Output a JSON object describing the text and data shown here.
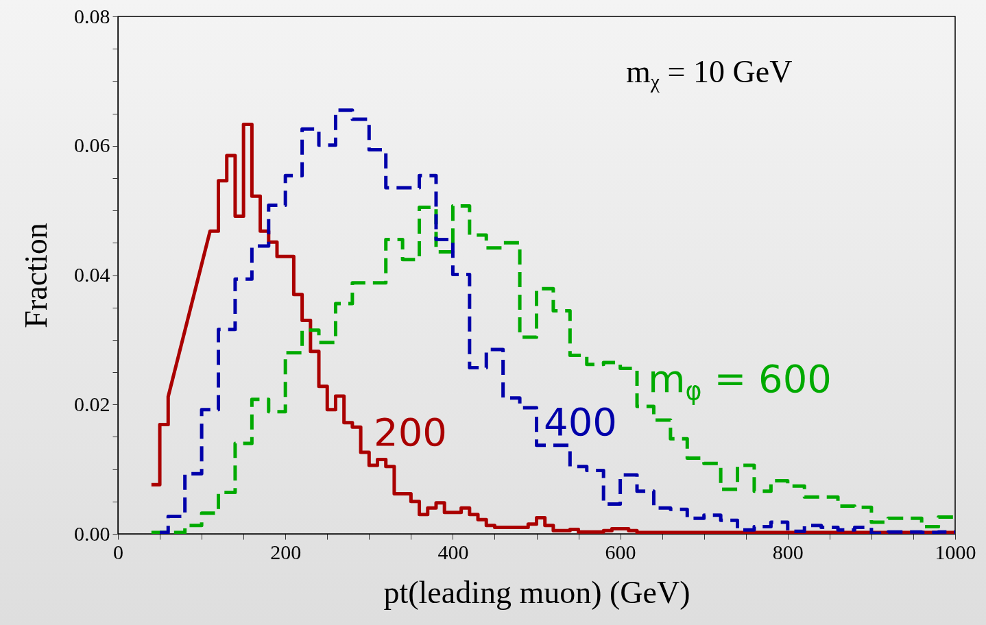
{
  "chart_data": {
    "type": "step",
    "xlabel": "pt(leading muon)  (GeV)",
    "ylabel": "Fraction",
    "annotations": [
      "m$_{χ}$ = 10 GeV"
    ],
    "xlim": [
      0,
      1000
    ],
    "ylim": [
      0,
      0.08
    ],
    "xticks": [
      0,
      {
        "value": 50,
        "label": null
      },
      200,
      {
        "value": 100,
        "label": null
      },
      {
        "value": 150,
        "label": null
      },
      {
        "value": 250,
        "label": null
      },
      {
        "value": 300,
        "label": null
      },
      {
        "value": 350,
        "label": null
      },
      400,
      {
        "value": 450,
        "label": null
      },
      {
        "value": 500,
        "label": null
      },
      {
        "value": 550,
        "label": null
      },
      600,
      {
        "value": 650,
        "label": null
      },
      {
        "value": 700,
        "label": null
      },
      {
        "value": 750,
        "label": null
      },
      800,
      {
        "value": 850,
        "label": null
      },
      {
        "value": 900,
        "label": null
      },
      {
        "value": 950,
        "label": null
      },
      1000
    ],
    "yticks": [
      {
        "value": 0,
        "label": "0.00"
      },
      {
        "value": 0.005,
        "label": null
      },
      {
        "value": 0.01,
        "label": null
      },
      {
        "value": 0.015,
        "label": null
      },
      {
        "value": 0.02,
        "label": "0.02"
      },
      {
        "value": 0.025,
        "label": null
      },
      {
        "value": 0.03,
        "label": null
      },
      {
        "value": 0.035,
        "label": null
      },
      {
        "value": 0.04,
        "label": "0.04"
      },
      {
        "value": 0.045,
        "label": null
      },
      {
        "value": 0.05,
        "label": null
      },
      {
        "value": 0.055,
        "label": null
      },
      {
        "value": 0.06,
        "label": "0.06"
      },
      {
        "value": 0.065,
        "label": null
      },
      {
        "value": 0.07,
        "label": null
      },
      {
        "value": 0.075,
        "label": null
      },
      {
        "value": 0.08,
        "label": "0.08"
      }
    ],
    "grid": false,
    "series": [
      {
        "name": "200",
        "type": "line",
        "color": "#aa0000",
        "line_style": "solid",
        "x": [
          40,
          50,
          50,
          60,
          60,
          110,
          120,
          120,
          130,
          130,
          140,
          140,
          150,
          150,
          160,
          160,
          170,
          170,
          180,
          180,
          190,
          190,
          210,
          210,
          220,
          220,
          230,
          230,
          240,
          240,
          250,
          250,
          260,
          260,
          270,
          270,
          280,
          280,
          290,
          290,
          300,
          300,
          310,
          310,
          320,
          320,
          330,
          330,
          350,
          350,
          360,
          360,
          370,
          370,
          380,
          380,
          390,
          390,
          410,
          410,
          420,
          420,
          430,
          430,
          440,
          440,
          450,
          450,
          490,
          490,
          500,
          500,
          510,
          510,
          520,
          520,
          540,
          540,
          550,
          550,
          580,
          580,
          590,
          590,
          610,
          610,
          620,
          620,
          1000
        ],
        "values": [
          0.0076,
          0.0076,
          0.0169,
          0.0169,
          0.0212,
          0.0468,
          0.0468,
          0.0546,
          0.0546,
          0.0585,
          0.0585,
          0.0491,
          0.0491,
          0.0633,
          0.0633,
          0.0522,
          0.0522,
          0.0468,
          0.0468,
          0.0451,
          0.0451,
          0.0429,
          0.0429,
          0.037,
          0.037,
          0.033,
          0.033,
          0.0282,
          0.0282,
          0.0228,
          0.0228,
          0.0192,
          0.0192,
          0.0213,
          0.0213,
          0.0172,
          0.0172,
          0.0165,
          0.0165,
          0.0126,
          0.0126,
          0.0106,
          0.0106,
          0.0115,
          0.0115,
          0.0104,
          0.0104,
          0.0062,
          0.0062,
          0.005,
          0.005,
          0.003,
          0.003,
          0.004,
          0.004,
          0.0048,
          0.0048,
          0.0033,
          0.0033,
          0.004,
          0.004,
          0.003,
          0.003,
          0.0022,
          0.0022,
          0.0013,
          0.0013,
          0.001,
          0.001,
          0.0015,
          0.0015,
          0.0025,
          0.0025,
          0.0013,
          0.0013,
          0.0005,
          0.0005,
          0.0007,
          0.0007,
          0.0003,
          0.0003,
          0.0005,
          0.0005,
          0.0008,
          0.0008,
          0.0005,
          0.0005,
          0.0002,
          0.0002
        ]
      },
      {
        "name": "400",
        "color": "#0000aa",
        "line_style": "dashed",
        "x": [
          50,
          60,
          80,
          100,
          120,
          140,
          160,
          180,
          200,
          220,
          240,
          260,
          280,
          300,
          320,
          360,
          380,
          400,
          420,
          440,
          460,
          480,
          500,
          540,
          560,
          580,
          600,
          620,
          640,
          660,
          680,
          700,
          720,
          740,
          760,
          780,
          800,
          820,
          840,
          860,
          880,
          900,
          920,
          960,
          980,
          1000
        ],
        "values": [
          0.0002,
          0.0027,
          0.0093,
          0.0192,
          0.0316,
          0.0394,
          0.0445,
          0.0508,
          0.0554,
          0.0626,
          0.0601,
          0.0655,
          0.0641,
          0.0594,
          0.0535,
          0.0554,
          0.0455,
          0.0401,
          0.0257,
          0.0285,
          0.021,
          0.0195,
          0.0137,
          0.0104,
          0.0098,
          0.0046,
          0.0091,
          0.0066,
          0.004,
          0.0038,
          0.0024,
          0.0029,
          0.0021,
          0.0006,
          0.0011,
          0.0018,
          0.0004,
          0.0013,
          0.001,
          0.0006,
          0.001,
          0.0001,
          0.0003,
          0.0002,
          0.0003,
          0.0003
        ]
      },
      {
        "name": "m$_{φ}$ = 600",
        "color": "#00aa00",
        "line_style": "dashed",
        "x": [
          40,
          80,
          100,
          120,
          140,
          160,
          180,
          200,
          220,
          240,
          260,
          280,
          320,
          340,
          360,
          380,
          400,
          420,
          440,
          460,
          480,
          500,
          520,
          540,
          560,
          580,
          600,
          620,
          640,
          660,
          680,
          700,
          720,
          740,
          760,
          780,
          800,
          820,
          840,
          860,
          880,
          900,
          920,
          960,
          980,
          1000
        ],
        "values": [
          0.0002,
          0.0013,
          0.0032,
          0.0064,
          0.014,
          0.0208,
          0.0189,
          0.028,
          0.0315,
          0.0296,
          0.0356,
          0.0388,
          0.0455,
          0.0424,
          0.0505,
          0.0436,
          0.0507,
          0.0462,
          0.0442,
          0.045,
          0.0304,
          0.0379,
          0.0345,
          0.0276,
          0.0262,
          0.0265,
          0.0256,
          0.0197,
          0.0176,
          0.0147,
          0.0117,
          0.0109,
          0.0069,
          0.0106,
          0.0066,
          0.0082,
          0.0074,
          0.0057,
          0.0057,
          0.0043,
          0.0041,
          0.0018,
          0.0024,
          0.0011,
          0.0026,
          0.0026
        ]
      }
    ]
  }
}
